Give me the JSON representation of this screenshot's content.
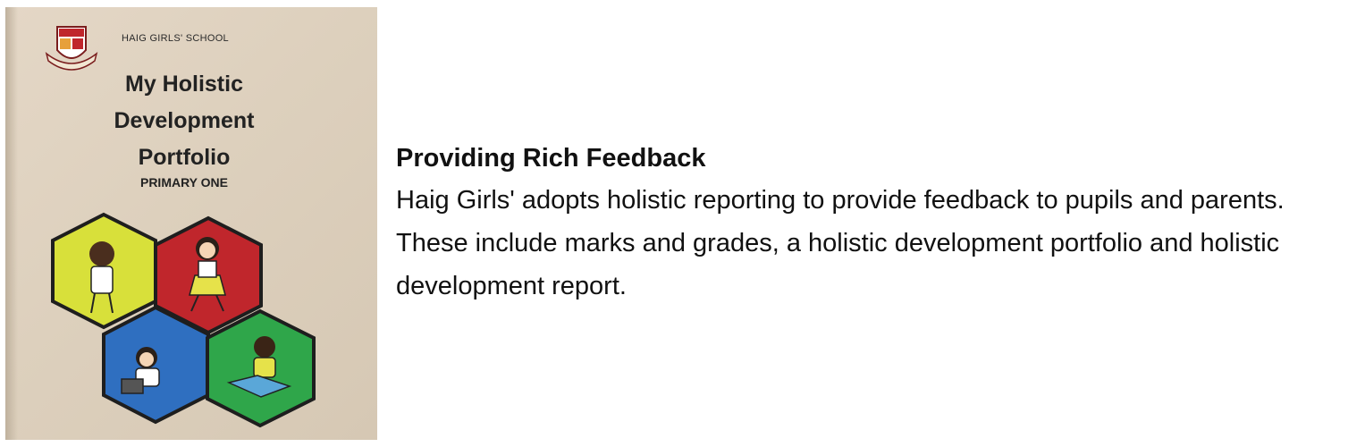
{
  "cover": {
    "school_name": "HAIG GIRLS' SCHOOL",
    "title_lines": [
      "My Holistic",
      "Development",
      "Portfolio"
    ],
    "subtitle": "PRIMARY ONE",
    "hexagon_colors": {
      "yellow": "#d8e03a",
      "red": "#c0262c",
      "blue": "#2f6fc0",
      "green": "#2fa64a"
    }
  },
  "content": {
    "heading": "Providing Rich Feedback",
    "body": "Haig Girls' adopts holistic reporting to provide feedback to pupils and parents. These include marks and grades, a holistic development portfolio and holistic development report."
  }
}
